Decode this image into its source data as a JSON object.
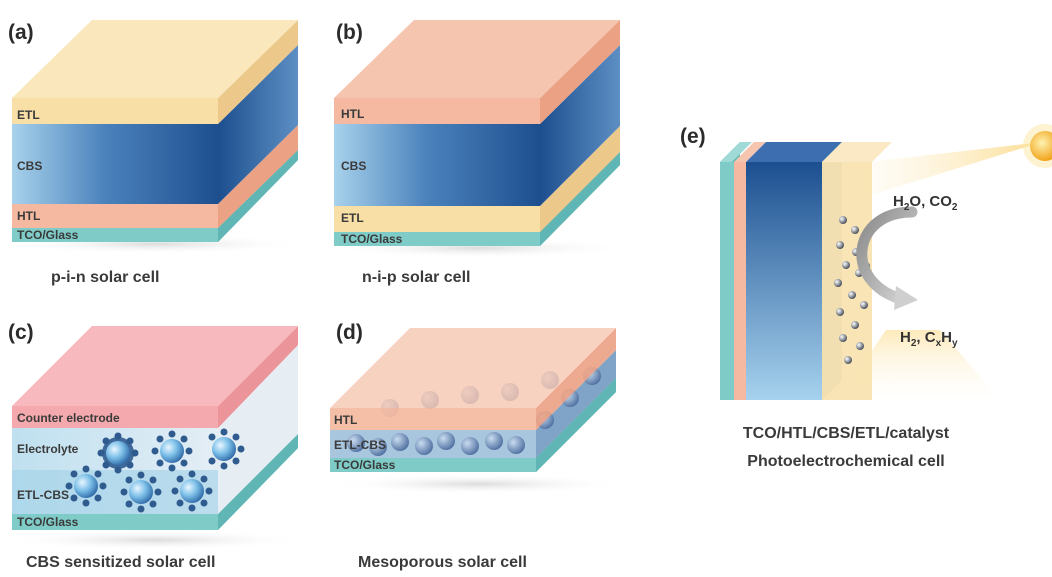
{
  "panels": {
    "a": {
      "label": "(a)",
      "layers": [
        "ETL",
        "CBS",
        "HTL",
        "TCO/Glass"
      ],
      "caption": "p-i-n solar cell"
    },
    "b": {
      "label": "(b)",
      "layers": [
        "HTL",
        "CBS",
        "ETL",
        "TCO/Glass"
      ],
      "caption": "n-i-p solar cell"
    },
    "c": {
      "label": "(c)",
      "layers": [
        "Counter electrode",
        "Electrolyte",
        "ETL-CBS",
        "TCO/Glass"
      ],
      "caption": "CBS sensitized solar cell"
    },
    "d": {
      "label": "(d)",
      "layers": [
        "HTL",
        "ETL-CBS",
        "TCO/Glass"
      ],
      "caption": "Mesoporous solar cell"
    },
    "e": {
      "label": "(e)",
      "reactants": {
        "h2o_main": "H",
        "h2o_sub": "2",
        "h2o_rest": "O, CO",
        "co2_sub": "2"
      },
      "products": {
        "h2_main": "H",
        "h2_sub": "2",
        "mid": ", C",
        "cx_sub": "x",
        "h": "H",
        "hy_sub": "y"
      },
      "caption_line1": "TCO/HTL/CBS/ETL/catalyst",
      "caption_line2": "Photoelectrochemical cell"
    }
  },
  "colors": {
    "etl": "#f8dfa6",
    "htl": "#f4b9a0",
    "cbs_dark": "#1f5596",
    "cbs_light": "#a8d2ec",
    "tco": "#7ecbc8",
    "counter_electrode": "#f3a9ad",
    "electrolyte": "#cfe3ef",
    "sun": "#f6b832"
  },
  "icons": [
    "sun-icon",
    "curved-arrow-icon",
    "catalyst-particle-icon",
    "nanoparticle-icon"
  ]
}
